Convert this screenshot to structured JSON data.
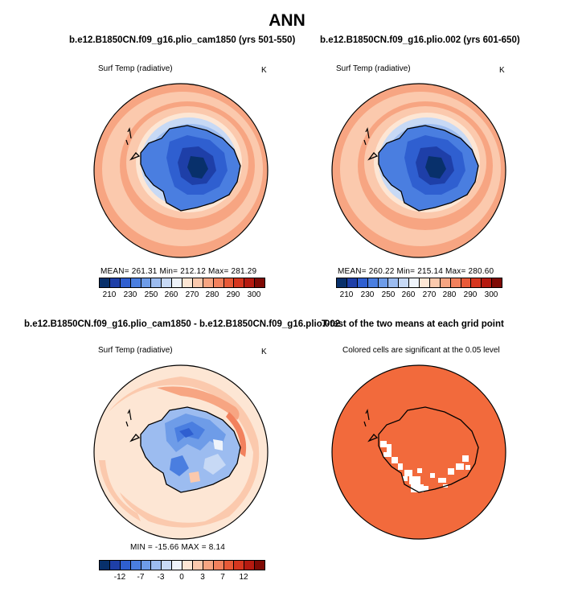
{
  "title": "ANN",
  "panels": {
    "p1": {
      "title": "b.e12.B1850CN.f09_g16.plio_cam1850 (yrs 501-550)",
      "variable": "Surf Temp (radiative)",
      "unit": "K",
      "stats": "MEAN= 261.31   Min= 212.12   Max= 281.29"
    },
    "p2": {
      "title": "b.e12.B1850CN.f09_g16.plio.002 (yrs 601-650)",
      "variable": "Surf Temp (radiative)",
      "unit": "K",
      "stats": "MEAN= 260.22   Min= 215.14   Max= 280.60"
    },
    "p3": {
      "title": "b.e12.B1850CN.f09_g16.plio_cam1850 - b.e12.B1850CN.f09_g16.plio.002",
      "variable": "Surf Temp (radiative)",
      "unit": "K",
      "stats": "MIN = -15.66  MAX =    8.14"
    },
    "p4": {
      "title": "T-test of the two means at each grid point",
      "subtitle": "Colored cells are significant at the 0.05 level"
    }
  },
  "legend_abs": {
    "ticks": [
      "210",
      "230",
      "250",
      "260",
      "270",
      "280",
      "290",
      "300"
    ],
    "colors": [
      "#08306b",
      "#1e3fa8",
      "#2f5fd0",
      "#4a7ee0",
      "#6e9ce8",
      "#9cbcf0",
      "#c7d9f5",
      "#eef3fb",
      "#fde6d4",
      "#fbc9ad",
      "#f7a582",
      "#f2815d",
      "#e85a38",
      "#d6361f",
      "#b51a10",
      "#7f0a05"
    ]
  },
  "legend_diff": {
    "ticks": [
      "-12",
      "-7",
      "-3",
      "0",
      "3",
      "7",
      "12"
    ],
    "colors": [
      "#08306b",
      "#1e3fa8",
      "#2f5fd0",
      "#4a7ee0",
      "#6e9ce8",
      "#9cbcf0",
      "#c7d9f5",
      "#eef3fb",
      "#fde6d4",
      "#fbc9ad",
      "#f7a582",
      "#f2815d",
      "#e85a38",
      "#d6361f",
      "#b51a10",
      "#7f0a05"
    ]
  },
  "colors": {
    "significant": "#f26a3c",
    "not_significant": "#ffffff"
  }
}
